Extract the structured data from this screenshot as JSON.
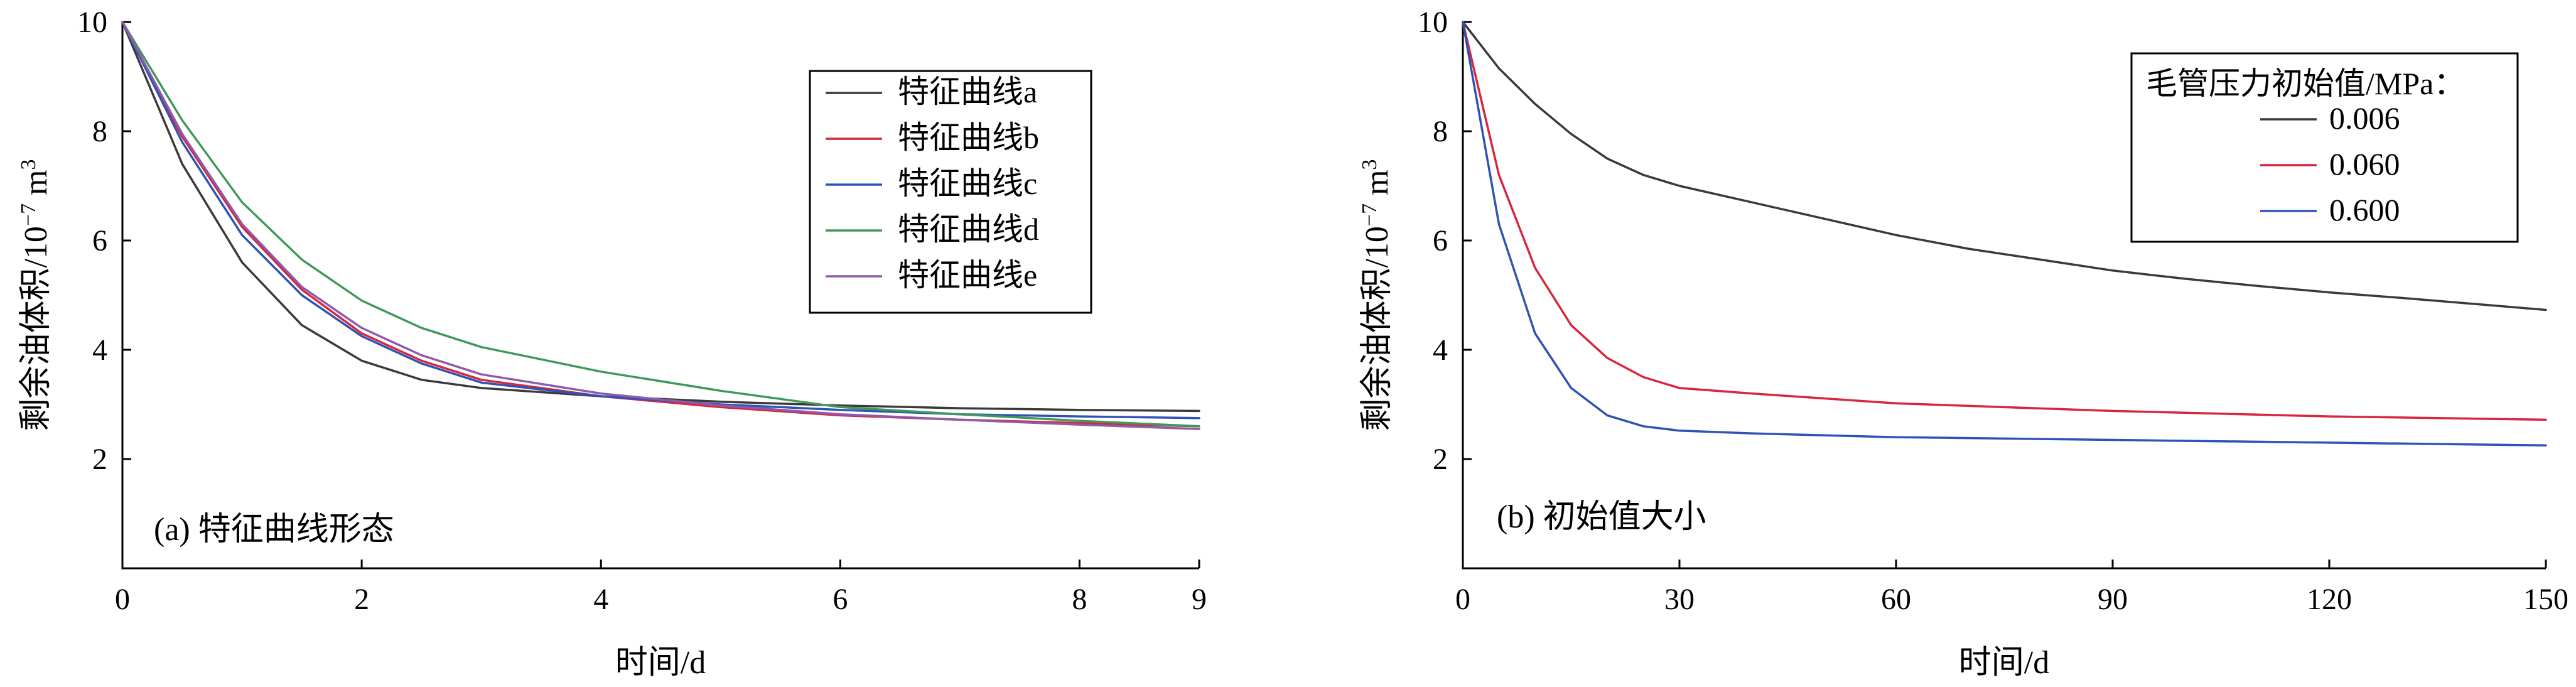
{
  "chart_data": [
    {
      "type": "line",
      "annotation": "(a) 特征曲线形态",
      "xlabel": "时间/d",
      "ylabel_main": "剩余油体积/10",
      "ylabel_exp": "−7",
      "ylabel_unit": " m",
      "ylabel_unit_exp": "3",
      "xlim": [
        0,
        9
      ],
      "ylim": [
        0,
        10
      ],
      "xticks": [
        0,
        2,
        4,
        6,
        8,
        9
      ],
      "yticks": [
        2,
        4,
        6,
        8,
        10
      ],
      "grid": false,
      "legend_position": "top-right",
      "series": [
        {
          "name": "特征曲线a",
          "color": "#3a3a3a",
          "x": [
            0,
            0.5,
            1,
            1.5,
            2,
            2.5,
            3,
            4,
            5,
            6,
            7,
            8,
            9
          ],
          "y": [
            10,
            7.4,
            5.6,
            4.45,
            3.8,
            3.45,
            3.3,
            3.15,
            3.05,
            2.98,
            2.93,
            2.9,
            2.88
          ]
        },
        {
          "name": "特征曲线b",
          "color": "#d7263d",
          "x": [
            0,
            0.5,
            1,
            1.5,
            2,
            2.5,
            3,
            4,
            5,
            6,
            7,
            8,
            9
          ],
          "y": [
            10,
            7.9,
            6.25,
            5.1,
            4.3,
            3.8,
            3.45,
            3.15,
            2.95,
            2.8,
            2.72,
            2.66,
            2.6
          ]
        },
        {
          "name": "特征曲线c",
          "color": "#2f52b5",
          "x": [
            0,
            0.5,
            1,
            1.5,
            2,
            2.5,
            3,
            4,
            5,
            6,
            7,
            8,
            9
          ],
          "y": [
            10,
            7.8,
            6.1,
            5.0,
            4.25,
            3.75,
            3.4,
            3.15,
            3.0,
            2.9,
            2.82,
            2.78,
            2.75
          ]
        },
        {
          "name": "特征曲线d",
          "color": "#3f9a5a",
          "x": [
            0,
            0.5,
            1,
            1.5,
            2,
            2.5,
            3,
            4,
            5,
            6,
            7,
            8,
            9
          ],
          "y": [
            10,
            8.2,
            6.7,
            5.65,
            4.9,
            4.4,
            4.05,
            3.6,
            3.25,
            2.95,
            2.82,
            2.7,
            2.6
          ]
        },
        {
          "name": "特征曲线e",
          "color": "#8e5bab",
          "x": [
            0,
            0.5,
            1,
            1.5,
            2,
            2.5,
            3,
            4,
            5,
            6,
            7,
            8,
            9
          ],
          "y": [
            10,
            7.95,
            6.3,
            5.15,
            4.4,
            3.9,
            3.55,
            3.2,
            2.98,
            2.82,
            2.72,
            2.63,
            2.55
          ]
        }
      ]
    },
    {
      "type": "line",
      "annotation": "(b) 初始值大小",
      "xlabel": "时间/d",
      "ylabel_main": "剩余油体积/10",
      "ylabel_exp": "−7",
      "ylabel_unit": " m",
      "ylabel_unit_exp": "3",
      "xlim": [
        0,
        150
      ],
      "ylim": [
        0,
        10
      ],
      "xticks": [
        0,
        30,
        60,
        90,
        120,
        150
      ],
      "yticks": [
        2,
        4,
        6,
        8,
        10
      ],
      "grid": false,
      "legend_position": "top-right",
      "legend_title": "毛管压力初始值/MPa：",
      "series": [
        {
          "name": "0.006",
          "color": "#3a3a3a",
          "x": [
            0,
            5,
            10,
            15,
            20,
            25,
            30,
            40,
            50,
            60,
            70,
            80,
            90,
            100,
            110,
            120,
            130,
            140,
            150
          ],
          "y": [
            10,
            9.15,
            8.5,
            7.95,
            7.5,
            7.2,
            7.0,
            6.7,
            6.4,
            6.1,
            5.85,
            5.65,
            5.45,
            5.3,
            5.17,
            5.05,
            4.95,
            4.84,
            4.73
          ]
        },
        {
          "name": "0.060",
          "color": "#d7263d",
          "x": [
            0,
            5,
            10,
            15,
            20,
            25,
            30,
            40,
            60,
            90,
            120,
            150
          ],
          "y": [
            10,
            7.2,
            5.5,
            4.45,
            3.85,
            3.5,
            3.3,
            3.2,
            3.02,
            2.88,
            2.78,
            2.72
          ]
        },
        {
          "name": "0.600",
          "color": "#2f52b5",
          "x": [
            0,
            5,
            10,
            15,
            20,
            25,
            30,
            40,
            60,
            90,
            120,
            150
          ],
          "y": [
            10,
            6.3,
            4.3,
            3.3,
            2.8,
            2.6,
            2.52,
            2.47,
            2.4,
            2.35,
            2.3,
            2.25
          ]
        }
      ]
    }
  ]
}
